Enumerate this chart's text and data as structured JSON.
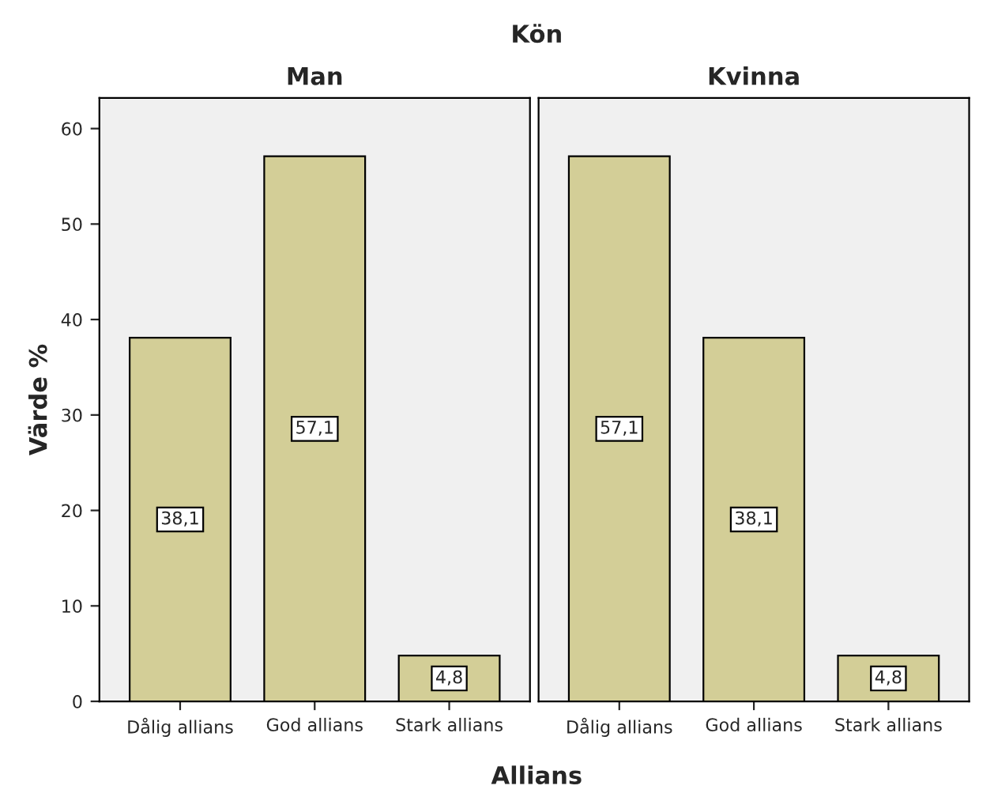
{
  "chart_data": [
    {
      "type": "bar",
      "title": "Man",
      "ylabel": "Värde %",
      "xlabel": "Allians",
      "annotations": [
        "Kön"
      ],
      "categories": [
        "Dålig allians",
        "God allians",
        "Stark allians"
      ],
      "values": [
        38.1,
        57.1,
        4.8
      ],
      "value_labels": [
        "38,1",
        "57,1",
        "4,8"
      ],
      "color": "#d3ce97",
      "ylim": [
        0,
        63.2
      ],
      "yticks": [
        0,
        10,
        20,
        30,
        40,
        50,
        60
      ],
      "grid": false,
      "legend": false
    },
    {
      "type": "bar",
      "title": "Kvinna",
      "categories": [
        "Dålig allians",
        "God allians",
        "Stark allians"
      ],
      "values": [
        57.1,
        38.1,
        4.8
      ],
      "value_labels": [
        "57,1",
        "38,1",
        "4,8"
      ],
      "color": "#d3ce97",
      "ylim": [
        0,
        63.2
      ],
      "yticks": [
        0,
        10,
        20,
        30,
        40,
        50,
        60
      ],
      "tick_labels": "x",
      "grid": false,
      "legend": false
    }
  ]
}
